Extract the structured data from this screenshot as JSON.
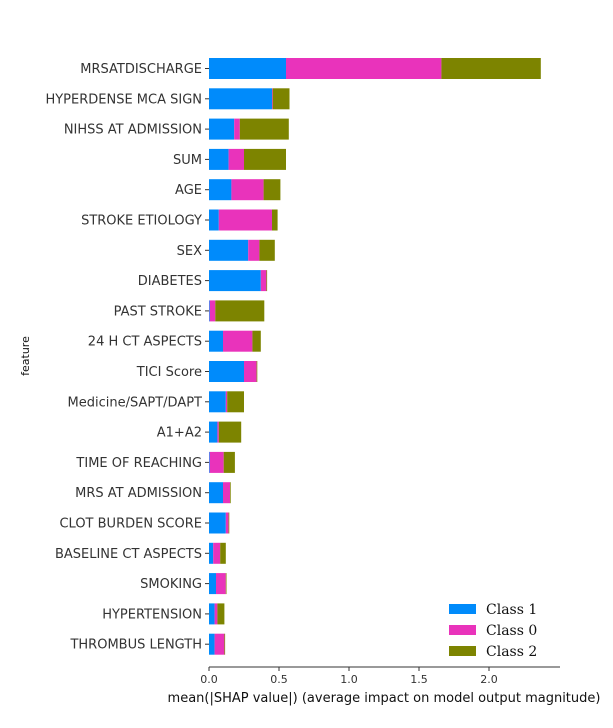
{
  "chart_data": {
    "type": "bar",
    "orientation": "horizontal",
    "stacked": true,
    "xlabel": "mean(|SHAP value|) (average impact on model output magnitude)",
    "ylabel": "feature",
    "xlim": [
      0,
      2.5
    ],
    "xticks": [
      "0.0",
      "0.5",
      "1.0",
      "1.5",
      "2.0"
    ],
    "xtick_values": [
      0,
      0.5,
      1.0,
      1.5,
      2.0
    ],
    "grid": false,
    "legend_position": "bottom-right",
    "categories": [
      "MRSATDISCHARGE",
      "HYPERDENSE MCA SIGN",
      "NIHSS AT ADMISSION",
      "SUM",
      "AGE",
      "STROKE ETIOLOGY",
      "SEX",
      "DIABETES",
      "PAST STROKE",
      "24 H CT ASPECTS",
      "TICI Score",
      "Medicine/SAPT/DAPT",
      "A1+A2",
      "TIME OF REACHING",
      "MRS AT ADMISSION",
      "CLOT BURDEN SCORE",
      "BASELINE CT ASPECTS",
      "SMOKING",
      "HYPERTENSION",
      "THROMBUS LENGTH"
    ],
    "series": [
      {
        "name": "Class 1",
        "color": "#008bfb",
        "values": [
          0.55,
          0.45,
          0.18,
          0.14,
          0.16,
          0.07,
          0.28,
          0.37,
          0.005,
          0.1,
          0.25,
          0.12,
          0.06,
          0.005,
          0.1,
          0.12,
          0.03,
          0.05,
          0.04,
          0.04
        ]
      },
      {
        "name": "Class 0",
        "color": "#e933bb",
        "values": [
          1.11,
          0.005,
          0.04,
          0.11,
          0.23,
          0.38,
          0.08,
          0.04,
          0.04,
          0.21,
          0.09,
          0.01,
          0.01,
          0.1,
          0.05,
          0.02,
          0.05,
          0.07,
          0.02,
          0.07
        ]
      },
      {
        "name": "Class 2",
        "color": "#7d8400",
        "values": [
          0.71,
          0.12,
          0.35,
          0.3,
          0.12,
          0.04,
          0.11,
          0.005,
          0.35,
          0.06,
          0.005,
          0.12,
          0.16,
          0.08,
          0.005,
          0.005,
          0.04,
          0.005,
          0.05,
          0.005
        ]
      }
    ],
    "legend_order": [
      "Class 1",
      "Class 0",
      "Class 2"
    ]
  }
}
